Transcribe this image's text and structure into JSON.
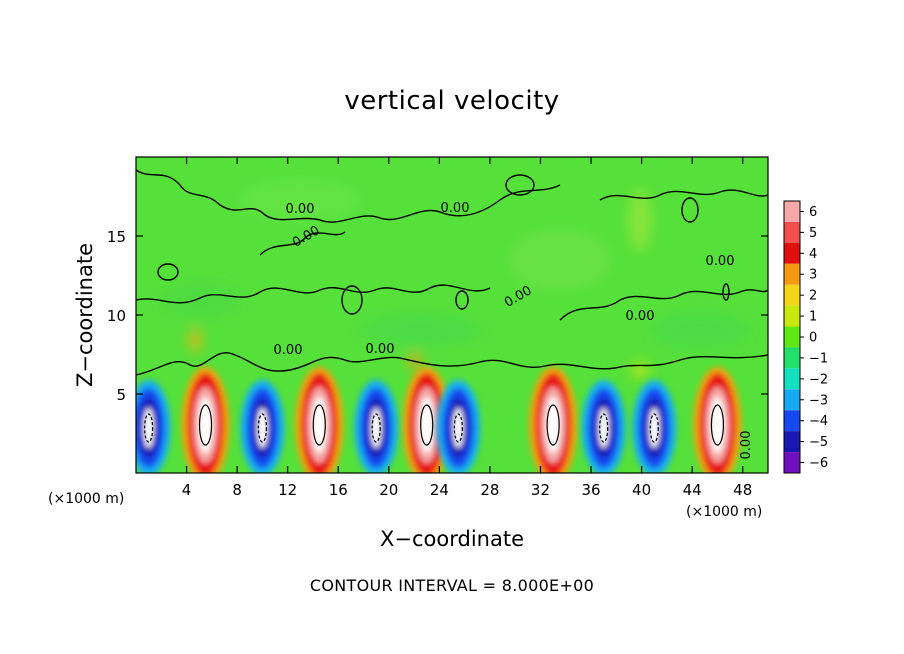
{
  "chart_data": {
    "type": "heatmap",
    "title": "vertical velocity",
    "xlabel": "X−coordinate",
    "ylabel": "Z−coordinate",
    "x_unit_label": "(×1000 m)",
    "xlim": [
      0,
      50
    ],
    "ylim": [
      0,
      20
    ],
    "x_ticks": [
      4,
      8,
      12,
      16,
      20,
      24,
      28,
      32,
      36,
      40,
      44,
      48
    ],
    "y_ticks": [
      5,
      10,
      15
    ],
    "colorbar": {
      "labels": [
        "6",
        "5",
        "4",
        "3",
        "2",
        "1",
        "0",
        "−1",
        "−2",
        "−3",
        "−4",
        "−5",
        "−6"
      ],
      "colors": [
        "#f4a8a8",
        "#f25050",
        "#e01010",
        "#f59a10",
        "#f2d418",
        "#c8e810",
        "#5fe812",
        "#1fe06a",
        "#12e0c0",
        "#18a8f0",
        "#1848f0",
        "#1818b0",
        "#7010c0"
      ],
      "range": [
        -6,
        6
      ]
    },
    "background_color": "#56e03a",
    "contour_labels": [
      "0.00",
      "0.00",
      "0.00",
      "0.00",
      "0.00",
      "0.00",
      "0.00",
      "0.00",
      "0.00"
    ],
    "updraft_centers_x": [
      5.5,
      14.5,
      23,
      33,
      46
    ],
    "downdraft_centers_x": [
      1,
      10,
      19,
      25.5,
      37,
      41
    ],
    "contour_interval_text": "CONTOUR INTERVAL =  8.000E+00"
  }
}
